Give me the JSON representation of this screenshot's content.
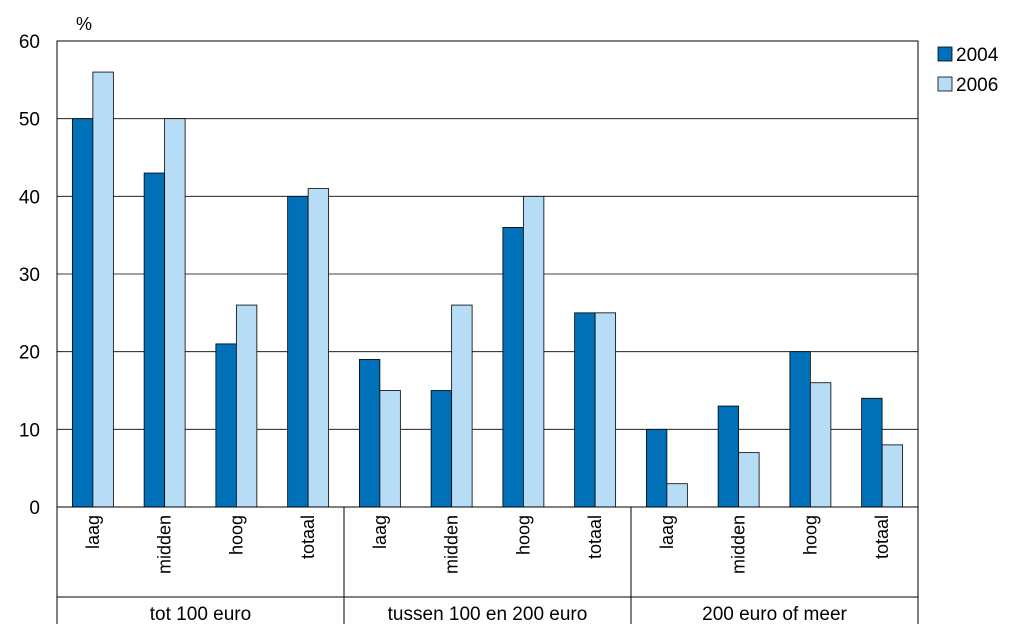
{
  "chart_data": {
    "type": "bar",
    "ylabel": "%",
    "ylim": [
      0,
      60
    ],
    "yticks": [
      0,
      10,
      20,
      30,
      40,
      50,
      60
    ],
    "grid": true,
    "legend_position": "top-right",
    "groups": [
      "tot 100 euro",
      "tussen 100 en 200 euro",
      "200 euro of meer"
    ],
    "categories": [
      "laag",
      "midden",
      "hoog",
      "totaal",
      "laag",
      "midden",
      "hoog",
      "totaal",
      "laag",
      "midden",
      "hoog",
      "totaal"
    ],
    "series": [
      {
        "name": "2004",
        "color": "#0071b9",
        "values": [
          50,
          43,
          21,
          40,
          19,
          15,
          36,
          25,
          10,
          13,
          20,
          14
        ]
      },
      {
        "name": "2006",
        "color": "#b7dcf5",
        "values": [
          56,
          50,
          26,
          41,
          15,
          26,
          40,
          25,
          3,
          7,
          16,
          8
        ]
      }
    ]
  }
}
